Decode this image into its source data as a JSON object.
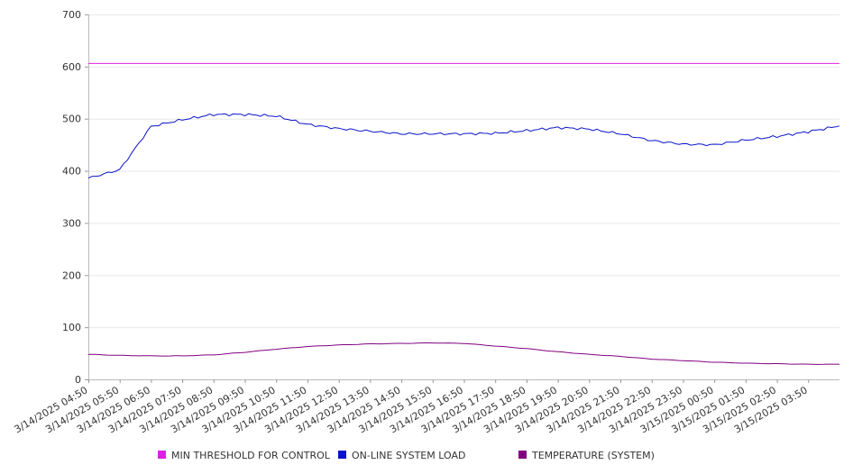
{
  "chart_data": {
    "type": "line",
    "ylim": [
      0,
      700
    ],
    "yticks": [
      0,
      100,
      200,
      300,
      400,
      500,
      600,
      700
    ],
    "xticks": [
      "3/14/2025 04:50",
      "3/14/2025 05:50",
      "3/14/2025 06:50",
      "3/14/2025 07:50",
      "3/14/2025 08:50",
      "3/14/2025 09:50",
      "3/14/2025 10:50",
      "3/14/2025 11:50",
      "3/14/2025 12:50",
      "3/14/2025 13:50",
      "3/14/2025 14:50",
      "3/14/2025 15:50",
      "3/14/2025 16:50",
      "3/14/2025 17:50",
      "3/14/2025 18:50",
      "3/14/2025 19:50",
      "3/14/2025 20:50",
      "3/14/2025 21:50",
      "3/14/2025 22:50",
      "3/14/2025 23:50",
      "3/15/2025 00:50",
      "3/15/2025 01:50",
      "3/15/2025 02:50",
      "3/15/2025 03:50"
    ],
    "x_range": [
      "3/14/2025 04:50",
      "3/15/2025 04:50"
    ],
    "grid": true,
    "legend_position": "bottom",
    "series": [
      {
        "name": "MIN THRESHOLD FOR CONTROL",
        "color": "#e020e0",
        "values": [
          606,
          606,
          606,
          606,
          606,
          606,
          606,
          606,
          606,
          606,
          606,
          606,
          606,
          606,
          606,
          606,
          606,
          606,
          606,
          606,
          606,
          606,
          606,
          606,
          606
        ]
      },
      {
        "name": "ON-LINE SYSTEM LOAD",
        "color": "#0a14c8",
        "values": [
          386,
          402,
          485,
          498,
          508,
          508,
          505,
          489,
          481,
          476,
          471,
          471,
          471,
          472,
          477,
          483,
          480,
          471,
          458,
          451,
          450,
          459,
          466,
          475,
          486
        ]
      },
      {
        "name": "TEMPERATURE (SYSTEM)",
        "color": "#800080",
        "values": [
          48,
          46,
          45,
          45,
          47,
          52,
          58,
          63,
          66,
          68,
          69,
          70,
          69,
          64,
          59,
          53,
          48,
          44,
          39,
          36,
          33,
          31,
          30,
          29,
          29
        ]
      }
    ]
  }
}
